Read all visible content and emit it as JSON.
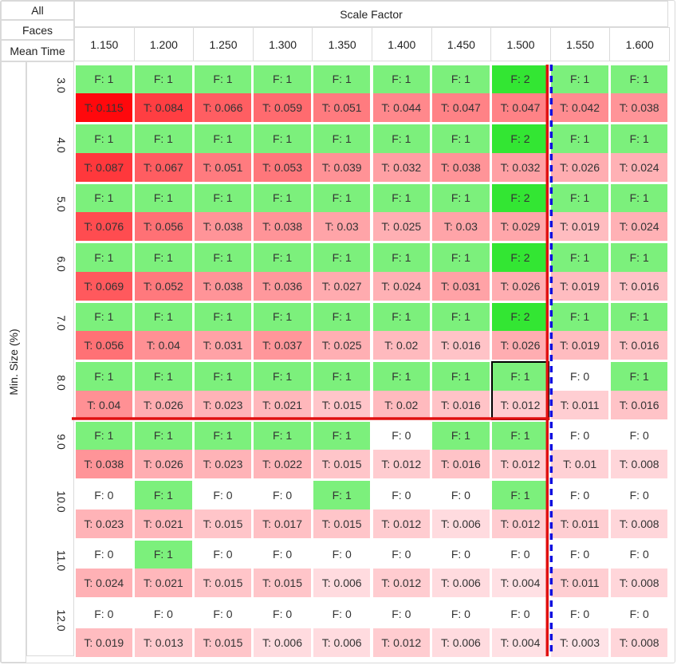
{
  "header": {
    "row_labels": [
      "All",
      "Faces",
      "Mean Time"
    ],
    "col_group_title": "Scale Factor",
    "y_axis_title": "Min. Size (%)"
  },
  "columns": [
    "1.150",
    "1.200",
    "1.250",
    "1.300",
    "1.350",
    "1.400",
    "1.450",
    "1.500",
    "1.550",
    "1.600"
  ],
  "rows": [
    "3.0",
    "4.0",
    "5.0",
    "6.0",
    "7.0",
    "8.0",
    "9.0",
    "10.0",
    "11.0",
    "12.0"
  ],
  "face_prefix": "F: ",
  "time_prefix": "T: ",
  "chart_data": {
    "type": "heatmap",
    "title": "Scale Factor",
    "xlabel": "Scale Factor",
    "ylabel": "Min. Size (%)",
    "x": [
      "1.150",
      "1.200",
      "1.250",
      "1.300",
      "1.350",
      "1.400",
      "1.450",
      "1.500",
      "1.550",
      "1.600"
    ],
    "y": [
      "3.0",
      "4.0",
      "5.0",
      "6.0",
      "7.0",
      "8.0",
      "9.0",
      "10.0",
      "11.0",
      "12.0"
    ],
    "faces": [
      [
        1,
        1,
        1,
        1,
        1,
        1,
        1,
        2,
        1,
        1
      ],
      [
        1,
        1,
        1,
        1,
        1,
        1,
        1,
        2,
        1,
        1
      ],
      [
        1,
        1,
        1,
        1,
        1,
        1,
        1,
        2,
        1,
        1
      ],
      [
        1,
        1,
        1,
        1,
        1,
        1,
        1,
        2,
        1,
        1
      ],
      [
        1,
        1,
        1,
        1,
        1,
        1,
        1,
        2,
        1,
        1
      ],
      [
        1,
        1,
        1,
        1,
        1,
        1,
        1,
        1,
        0,
        1
      ],
      [
        1,
        1,
        1,
        1,
        1,
        0,
        1,
        1,
        0,
        0
      ],
      [
        0,
        1,
        0,
        0,
        1,
        0,
        0,
        1,
        0,
        0
      ],
      [
        0,
        1,
        0,
        0,
        0,
        0,
        0,
        0,
        0,
        0
      ],
      [
        0,
        0,
        0,
        0,
        0,
        0,
        0,
        0,
        0,
        0
      ]
    ],
    "times": [
      [
        "0.115",
        "0.084",
        "0.066",
        "0.059",
        "0.051",
        "0.044",
        "0.047",
        "0.047",
        "0.042",
        "0.038"
      ],
      [
        "0.087",
        "0.067",
        "0.051",
        "0.053",
        "0.039",
        "0.032",
        "0.038",
        "0.032",
        "0.026",
        "0.024"
      ],
      [
        "0.076",
        "0.056",
        "0.038",
        "0.038",
        "0.03",
        "0.025",
        "0.03",
        "0.029",
        "0.019",
        "0.024"
      ],
      [
        "0.069",
        "0.052",
        "0.038",
        "0.036",
        "0.027",
        "0.024",
        "0.031",
        "0.026",
        "0.019",
        "0.016"
      ],
      [
        "0.056",
        "0.04",
        "0.031",
        "0.037",
        "0.025",
        "0.02",
        "0.016",
        "0.026",
        "0.019",
        "0.016"
      ],
      [
        "0.04",
        "0.026",
        "0.023",
        "0.021",
        "0.015",
        "0.02",
        "0.016",
        "0.012",
        "0.011",
        "0.016"
      ],
      [
        "0.038",
        "0.026",
        "0.023",
        "0.022",
        "0.015",
        "0.012",
        "0.016",
        "0.012",
        "0.01",
        "0.008"
      ],
      [
        "0.023",
        "0.021",
        "0.015",
        "0.017",
        "0.015",
        "0.012",
        "0.006",
        "0.012",
        "0.011",
        "0.008"
      ],
      [
        "0.024",
        "0.021",
        "0.015",
        "0.015",
        "0.006",
        "0.012",
        "0.006",
        "0.004",
        "0.011",
        "0.008"
      ],
      [
        "0.019",
        "0.013",
        "0.015",
        "0.006",
        "0.006",
        "0.012",
        "0.006",
        "0.004",
        "0.003",
        "0.008"
      ]
    ],
    "selected_cell": {
      "x": "1.500",
      "y": "8.0"
    },
    "threshold_lines": {
      "horizontal_between": [
        "8.0",
        "9.0"
      ],
      "vertical_between": [
        "1.500",
        "1.550"
      ]
    },
    "colors": {
      "face_one": "#7cf07c",
      "face_two": "#33e633",
      "face_zero": "#ffffff",
      "time_max": "#ff0000",
      "time_min": "#ffffff",
      "threshold_red": "#e01010",
      "threshold_blue": "#1010e0",
      "selection": "#000000"
    }
  }
}
